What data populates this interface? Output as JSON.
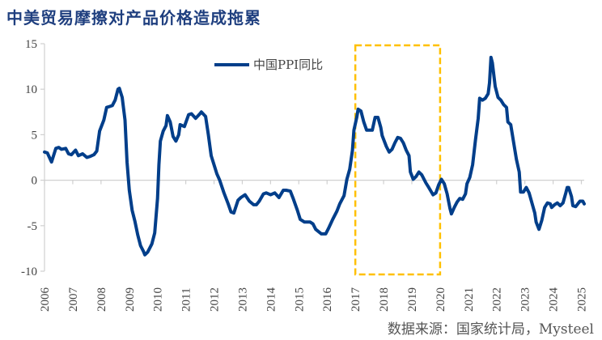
{
  "title": "中美贸易摩擦对产品价格造成拖累",
  "source": "数据来源：国家统计局，Mysteel",
  "colors": {
    "line": "#003E8A",
    "highlight": "#FFC000",
    "title": "#1F3F7F"
  },
  "chart_data": {
    "type": "line",
    "title": "中美贸易摩擦对产品价格造成拖累",
    "xlabel": "",
    "ylabel": "",
    "xlim": [
      2006.0,
      2025.1
    ],
    "ylim": [
      -10,
      15
    ],
    "yticks": [
      "15",
      "10",
      "5",
      "0",
      "-5",
      "-10"
    ],
    "ytick_values": [
      15,
      10,
      5,
      0,
      -5,
      -10
    ],
    "xticks": [
      "2006",
      "2007",
      "2008",
      "2009",
      "2010",
      "2011",
      "2012",
      "2013",
      "2014",
      "2015",
      "2016",
      "2017",
      "2018",
      "2019",
      "2020",
      "2021",
      "2022",
      "2023",
      "2024",
      "2025"
    ],
    "legend": {
      "position": "top-center",
      "entries": [
        "中国PPI同比"
      ]
    },
    "highlight_range": [
      2017.0,
      2020.0
    ],
    "grid": false,
    "series": [
      {
        "name": "中国PPI同比",
        "points": [
          [
            2006.0,
            3.1
          ],
          [
            2006.1,
            3.0
          ],
          [
            2006.25,
            2.0
          ],
          [
            2006.4,
            3.5
          ],
          [
            2006.5,
            3.6
          ],
          [
            2006.6,
            3.4
          ],
          [
            2006.75,
            3.5
          ],
          [
            2006.85,
            2.9
          ],
          [
            2006.95,
            2.8
          ],
          [
            2007.1,
            3.3
          ],
          [
            2007.2,
            2.7
          ],
          [
            2007.35,
            2.9
          ],
          [
            2007.5,
            2.5
          ],
          [
            2007.6,
            2.6
          ],
          [
            2007.75,
            2.8
          ],
          [
            2007.85,
            3.2
          ],
          [
            2007.95,
            5.4
          ],
          [
            2008.1,
            6.6
          ],
          [
            2008.2,
            8.0
          ],
          [
            2008.3,
            8.1
          ],
          [
            2008.4,
            8.2
          ],
          [
            2008.5,
            8.8
          ],
          [
            2008.6,
            10.0
          ],
          [
            2008.65,
            10.1
          ],
          [
            2008.75,
            9.1
          ],
          [
            2008.85,
            6.6
          ],
          [
            2008.92,
            2.0
          ],
          [
            2009.0,
            -1.1
          ],
          [
            2009.1,
            -3.3
          ],
          [
            2009.2,
            -4.5
          ],
          [
            2009.3,
            -6.0
          ],
          [
            2009.4,
            -7.2
          ],
          [
            2009.5,
            -7.8
          ],
          [
            2009.55,
            -8.2
          ],
          [
            2009.65,
            -7.9
          ],
          [
            2009.8,
            -7.0
          ],
          [
            2009.9,
            -5.8
          ],
          [
            2010.0,
            -2.0
          ],
          [
            2010.05,
            1.7
          ],
          [
            2010.1,
            4.3
          ],
          [
            2010.2,
            5.4
          ],
          [
            2010.3,
            6.0
          ],
          [
            2010.35,
            7.1
          ],
          [
            2010.45,
            6.4
          ],
          [
            2010.55,
            4.8
          ],
          [
            2010.65,
            4.3
          ],
          [
            2010.75,
            5.0
          ],
          [
            2010.8,
            6.1
          ],
          [
            2010.95,
            5.9
          ],
          [
            2011.1,
            7.2
          ],
          [
            2011.2,
            7.3
          ],
          [
            2011.35,
            6.8
          ],
          [
            2011.5,
            7.3
          ],
          [
            2011.55,
            7.5
          ],
          [
            2011.7,
            7.0
          ],
          [
            2011.8,
            5.0
          ],
          [
            2011.9,
            2.7
          ],
          [
            2012.0,
            1.7
          ],
          [
            2012.1,
            0.7
          ],
          [
            2012.2,
            0.0
          ],
          [
            2012.35,
            -1.4
          ],
          [
            2012.5,
            -2.6
          ],
          [
            2012.6,
            -3.5
          ],
          [
            2012.7,
            -3.6
          ],
          [
            2012.85,
            -2.2
          ],
          [
            2012.95,
            -1.9
          ],
          [
            2013.1,
            -1.6
          ],
          [
            2013.25,
            -2.3
          ],
          [
            2013.4,
            -2.7
          ],
          [
            2013.5,
            -2.7
          ],
          [
            2013.6,
            -2.3
          ],
          [
            2013.75,
            -1.5
          ],
          [
            2013.85,
            -1.4
          ],
          [
            2014.0,
            -1.6
          ],
          [
            2014.15,
            -1.4
          ],
          [
            2014.3,
            -1.9
          ],
          [
            2014.45,
            -1.1
          ],
          [
            2014.55,
            -1.1
          ],
          [
            2014.7,
            -1.2
          ],
          [
            2014.8,
            -2.0
          ],
          [
            2014.95,
            -3.3
          ],
          [
            2015.05,
            -4.3
          ],
          [
            2015.2,
            -4.6
          ],
          [
            2015.4,
            -4.6
          ],
          [
            2015.5,
            -4.8
          ],
          [
            2015.6,
            -5.4
          ],
          [
            2015.8,
            -5.9
          ],
          [
            2015.95,
            -5.9
          ],
          [
            2016.05,
            -5.3
          ],
          [
            2016.2,
            -4.3
          ],
          [
            2016.35,
            -3.4
          ],
          [
            2016.45,
            -2.6
          ],
          [
            2016.6,
            -1.7
          ],
          [
            2016.7,
            0.1
          ],
          [
            2016.8,
            1.2
          ],
          [
            2016.9,
            3.3
          ],
          [
            2016.95,
            5.5
          ],
          [
            2017.05,
            6.9
          ],
          [
            2017.1,
            7.8
          ],
          [
            2017.2,
            7.6
          ],
          [
            2017.3,
            6.4
          ],
          [
            2017.4,
            5.5
          ],
          [
            2017.5,
            5.5
          ],
          [
            2017.6,
            5.5
          ],
          [
            2017.7,
            6.9
          ],
          [
            2017.8,
            6.9
          ],
          [
            2017.9,
            5.8
          ],
          [
            2017.95,
            4.9
          ],
          [
            2018.1,
            3.7
          ],
          [
            2018.2,
            3.1
          ],
          [
            2018.3,
            3.4
          ],
          [
            2018.4,
            4.1
          ],
          [
            2018.5,
            4.7
          ],
          [
            2018.6,
            4.6
          ],
          [
            2018.7,
            4.1
          ],
          [
            2018.8,
            3.3
          ],
          [
            2018.9,
            2.7
          ],
          [
            2018.95,
            0.9
          ],
          [
            2019.05,
            0.1
          ],
          [
            2019.15,
            0.4
          ],
          [
            2019.25,
            0.9
          ],
          [
            2019.35,
            0.6
          ],
          [
            2019.5,
            -0.3
          ],
          [
            2019.6,
            -0.8
          ],
          [
            2019.75,
            -1.6
          ],
          [
            2019.85,
            -1.4
          ],
          [
            2019.95,
            -0.5
          ],
          [
            2020.05,
            0.1
          ],
          [
            2020.15,
            -0.4
          ],
          [
            2020.25,
            -1.5
          ],
          [
            2020.35,
            -3.1
          ],
          [
            2020.4,
            -3.7
          ],
          [
            2020.5,
            -3.0
          ],
          [
            2020.6,
            -2.4
          ],
          [
            2020.7,
            -2.0
          ],
          [
            2020.8,
            -2.1
          ],
          [
            2020.9,
            -1.5
          ],
          [
            2020.95,
            -0.4
          ],
          [
            2021.05,
            0.3
          ],
          [
            2021.15,
            1.7
          ],
          [
            2021.25,
            4.4
          ],
          [
            2021.35,
            6.8
          ],
          [
            2021.4,
            9.0
          ],
          [
            2021.5,
            8.8
          ],
          [
            2021.6,
            9.0
          ],
          [
            2021.7,
            9.5
          ],
          [
            2021.75,
            10.7
          ],
          [
            2021.8,
            13.5
          ],
          [
            2021.85,
            12.9
          ],
          [
            2021.95,
            10.3
          ],
          [
            2022.05,
            9.1
          ],
          [
            2022.15,
            8.8
          ],
          [
            2022.25,
            8.3
          ],
          [
            2022.35,
            8.0
          ],
          [
            2022.4,
            6.4
          ],
          [
            2022.5,
            6.1
          ],
          [
            2022.6,
            4.2
          ],
          [
            2022.7,
            2.3
          ],
          [
            2022.8,
            0.9
          ],
          [
            2022.85,
            -1.3
          ],
          [
            2022.95,
            -1.3
          ],
          [
            2023.05,
            -0.8
          ],
          [
            2023.15,
            -1.4
          ],
          [
            2023.25,
            -2.5
          ],
          [
            2023.35,
            -3.6
          ],
          [
            2023.4,
            -4.6
          ],
          [
            2023.5,
            -5.4
          ],
          [
            2023.6,
            -4.4
          ],
          [
            2023.7,
            -3.0
          ],
          [
            2023.8,
            -2.5
          ],
          [
            2023.9,
            -2.6
          ],
          [
            2023.95,
            -3.0
          ],
          [
            2024.05,
            -2.7
          ],
          [
            2024.15,
            -2.5
          ],
          [
            2024.25,
            -2.8
          ],
          [
            2024.35,
            -2.5
          ],
          [
            2024.45,
            -1.4
          ],
          [
            2024.5,
            -0.8
          ],
          [
            2024.55,
            -0.8
          ],
          [
            2024.65,
            -1.8
          ],
          [
            2024.7,
            -2.8
          ],
          [
            2024.8,
            -2.9
          ],
          [
            2024.9,
            -2.5
          ],
          [
            2024.95,
            -2.3
          ],
          [
            2025.05,
            -2.3
          ],
          [
            2025.1,
            -2.6
          ]
        ]
      }
    ]
  }
}
